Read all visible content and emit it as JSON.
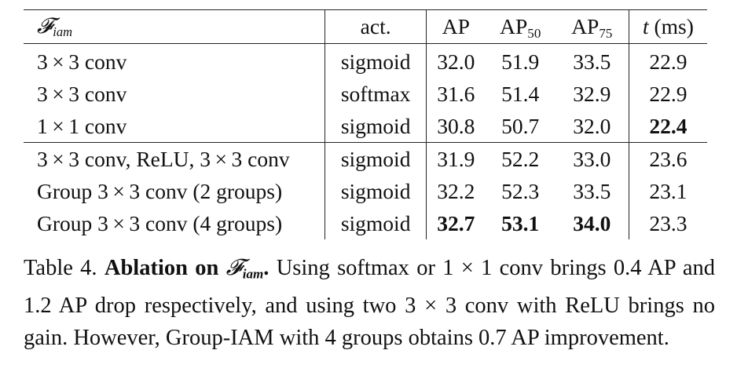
{
  "table": {
    "headers": {
      "f_symbol": "𝓕",
      "f_sub": "iam",
      "act": "act.",
      "ap": "AP",
      "ap50_base": "AP",
      "ap50_sub": "50",
      "ap75_base": "AP",
      "ap75_sub": "75",
      "t_var": "t",
      "t_unit": "(ms)"
    },
    "rows": [
      {
        "f": "3 × 3 conv",
        "act": "sigmoid",
        "ap": "32.0",
        "ap50": "51.9",
        "ap75": "33.5",
        "t": "22.9"
      },
      {
        "f": "3 × 3 conv",
        "act": "softmax",
        "ap": "31.6",
        "ap50": "51.4",
        "ap75": "32.9",
        "t": "22.9"
      },
      {
        "f": "1 × 1 conv",
        "act": "sigmoid",
        "ap": "30.8",
        "ap50": "50.7",
        "ap75": "32.0",
        "t": "22.4"
      },
      {
        "f": "3 × 3 conv, ReLU, 3 × 3 conv",
        "act": "sigmoid",
        "ap": "31.9",
        "ap50": "52.2",
        "ap75": "33.0",
        "t": "23.6"
      },
      {
        "f": "Group 3 × 3 conv (2 groups)",
        "act": "sigmoid",
        "ap": "32.2",
        "ap50": "52.3",
        "ap75": "33.5",
        "t": "23.1"
      },
      {
        "f": "Group 3 × 3 conv (4 groups)",
        "act": "sigmoid",
        "ap": "32.7",
        "ap50": "53.1",
        "ap75": "34.0",
        "t": "23.3"
      }
    ]
  },
  "caption": {
    "label": "Table 4.",
    "bold_prefix": "Ablation on",
    "bold_symbol": "𝓕",
    "bold_sub": "iam",
    "bold_dot": ".",
    "text": "Using softmax or 1 × 1 conv brings 0.4 AP and 1.2 AP drop respectively, and using two 3 × 3 conv with ReLU brings no gain. However, Group-IAM with 4 groups obtains 0.7 AP improvement."
  }
}
